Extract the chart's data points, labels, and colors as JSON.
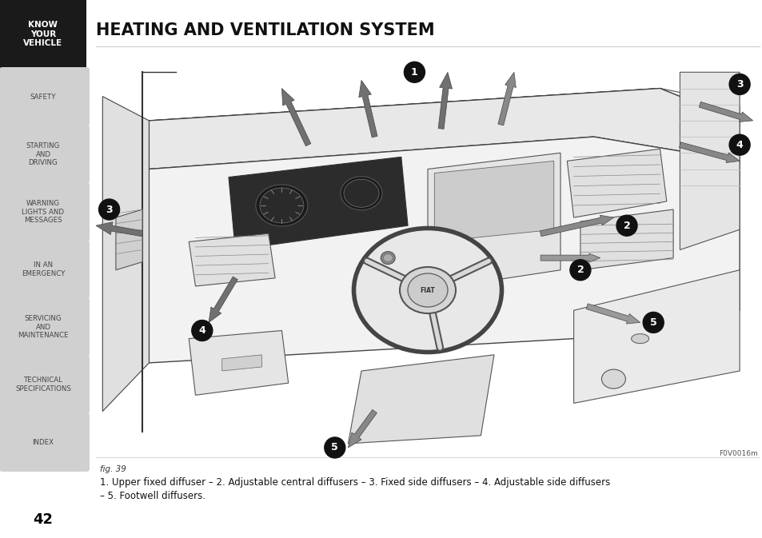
{
  "title": "HEATING AND VENTILATION SYSTEM",
  "page_number": "42",
  "fig_label": "fig. 39",
  "fig_code": "F0V0016m",
  "caption_line1": "1. Upper fixed diffuser – 2. Adjustable central diffusers – 3. Fixed side diffusers – 4. Adjustable side diffusers",
  "caption_line2": "– 5. Footwell diffusers.",
  "sidebar_items": [
    {
      "text": "KNOW\nYOUR\nVEHICLE",
      "active": true
    },
    {
      "text": "SAFETY",
      "active": false
    },
    {
      "text": "STARTING\nAND\nDRIVING",
      "active": false
    },
    {
      "text": "WARNING\nLIGHTS AND\nMESSAGES",
      "active": false
    },
    {
      "text": "IN AN\nEMERGENCY",
      "active": false
    },
    {
      "text": "SERVICING\nAND\nMAINTENANCE",
      "active": false
    },
    {
      "text": "TECHNICAL\nSPECIFICATIONS",
      "active": false
    },
    {
      "text": "INDEX",
      "active": false
    }
  ],
  "sidebar_bg_active": "#1a1a1a",
  "sidebar_bg_inactive": "#d0d0d0",
  "sidebar_text_active": "#ffffff",
  "sidebar_text_inactive": "#444444",
  "page_bg": "#ffffff",
  "title_color": "#111111"
}
